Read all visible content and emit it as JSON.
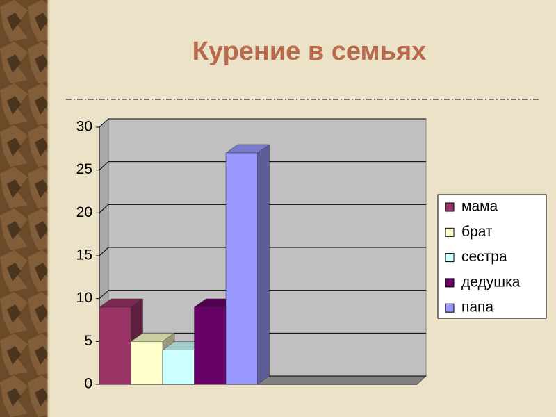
{
  "chart_data": {
    "type": "bar3d",
    "title": "Курение в семьях",
    "categories": [
      null
    ],
    "series": [
      {
        "name": "мама",
        "color": "#993366",
        "values": [
          9
        ]
      },
      {
        "name": "брат",
        "color": "#ffffcc",
        "values": [
          5
        ]
      },
      {
        "name": "сестра",
        "color": "#ccffff",
        "values": [
          4
        ]
      },
      {
        "name": "дедушка",
        "color": "#660066",
        "values": [
          9
        ]
      },
      {
        "name": "папа",
        "color": "#9999ff",
        "values": [
          27
        ]
      }
    ],
    "ylim": [
      0,
      30
    ],
    "yticks": [
      0,
      5,
      10,
      15,
      20,
      25,
      30
    ],
    "grid": true,
    "legend": "right"
  }
}
